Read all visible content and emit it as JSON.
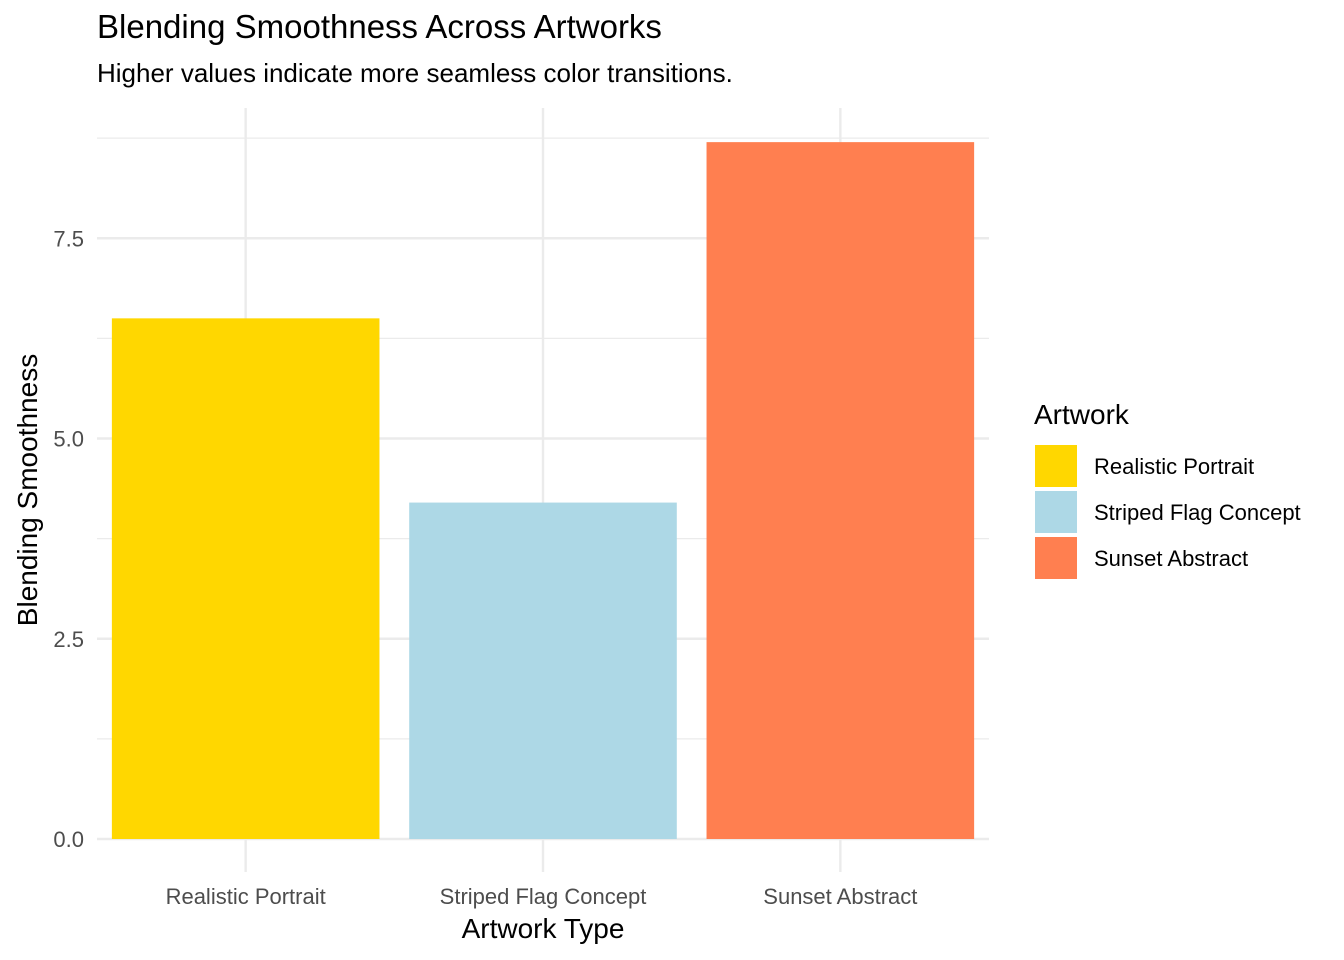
{
  "chart_data": {
    "type": "bar",
    "title": "Blending Smoothness Across Artworks",
    "subtitle": "Higher values indicate more seamless color transitions.",
    "xlabel": "Artwork Type",
    "ylabel": "Blending Smoothness",
    "categories": [
      "Realistic Portrait",
      "Striped Flag Concept",
      "Sunset Abstract"
    ],
    "values": [
      6.5,
      4.2,
      8.7
    ],
    "colors": [
      "#FFD700",
      "#ADD8E6",
      "#FF7F50"
    ],
    "ylim": [
      0,
      9.05
    ],
    "yticks": [
      0,
      2.5,
      5,
      7.5
    ],
    "ytick_labels": [
      "0.0",
      "2.5",
      "5.0",
      "7.5"
    ],
    "grid": true,
    "legend": {
      "title": "Artwork",
      "placement": "right",
      "entries": [
        "Realistic Portrait",
        "Striped Flag Concept",
        "Sunset Abstract"
      ]
    }
  }
}
